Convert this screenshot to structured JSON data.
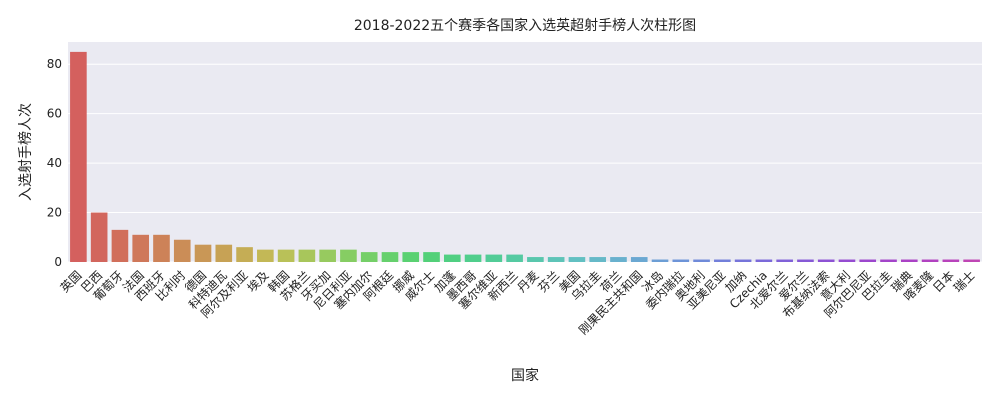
{
  "chart_data": {
    "type": "bar",
    "title": "2018-2022五个赛季各国家入选英超射手榜人次柱形图",
    "xlabel": "国家",
    "ylabel": "入选射手榜人次",
    "ylim": [
      0,
      89
    ],
    "yticks": [
      0,
      20,
      40,
      60,
      80
    ],
    "grid": true,
    "categories": [
      "英国",
      "巴西",
      "葡萄牙",
      "法国",
      "西班牙",
      "比利时",
      "德国",
      "科特迪瓦",
      "阿尔及利亚",
      "埃及",
      "韩国",
      "苏格兰",
      "牙买加",
      "尼日利亚",
      "塞内加尔",
      "阿根廷",
      "挪威",
      "威尔士",
      "加蓬",
      "墨西哥",
      "塞尔维亚",
      "新西兰",
      "丹麦",
      "芬兰",
      "美国",
      "乌拉圭",
      "荷兰",
      "刚果民主共和国",
      "冰岛",
      "委内瑞拉",
      "奥地利",
      "亚美尼亚",
      "加纳",
      "Czechia",
      "北爱尔兰",
      "爱尔兰",
      "布基纳法索",
      "意大利",
      "阿尔巴尼亚",
      "巴拉圭",
      "瑞典",
      "喀麦隆",
      "日本",
      "瑞士"
    ],
    "values": [
      85,
      20,
      13,
      11,
      11,
      9,
      7,
      7,
      6,
      5,
      5,
      5,
      5,
      5,
      4,
      4,
      4,
      4,
      3,
      3,
      3,
      3,
      2,
      2,
      2,
      2,
      2,
      2,
      1,
      1,
      1,
      1,
      1,
      1,
      1,
      1,
      1,
      1,
      1,
      1,
      1,
      1,
      1,
      1
    ],
    "colors": [
      "#d4605e",
      "#d2665d",
      "#d16f5b",
      "#cf785a",
      "#cd8258",
      "#cb8d57",
      "#c99756",
      "#c7a255",
      "#c5ad55",
      "#c3b856",
      "#b9c158",
      "#a8c65b",
      "#97ca5f",
      "#86cd63",
      "#75cf68",
      "#66d06d",
      "#5ad172",
      "#53d079",
      "#50cf82",
      "#50ce8c",
      "#52cc97",
      "#55caa2",
      "#59c7ad",
      "#5ec4b8",
      "#62c0c2",
      "#66b9c8",
      "#69b1ce",
      "#6ba8d2",
      "#6c9ed5",
      "#6d94d8",
      "#6f8ad9",
      "#727fda",
      "#7674da",
      "#7b69d9",
      "#8061d8",
      "#8659d6",
      "#8d52d4",
      "#954cd1",
      "#9c47cd",
      "#a344c9",
      "#aa42c5",
      "#b142c0",
      "#b843bb",
      "#bf46b4"
    ]
  }
}
